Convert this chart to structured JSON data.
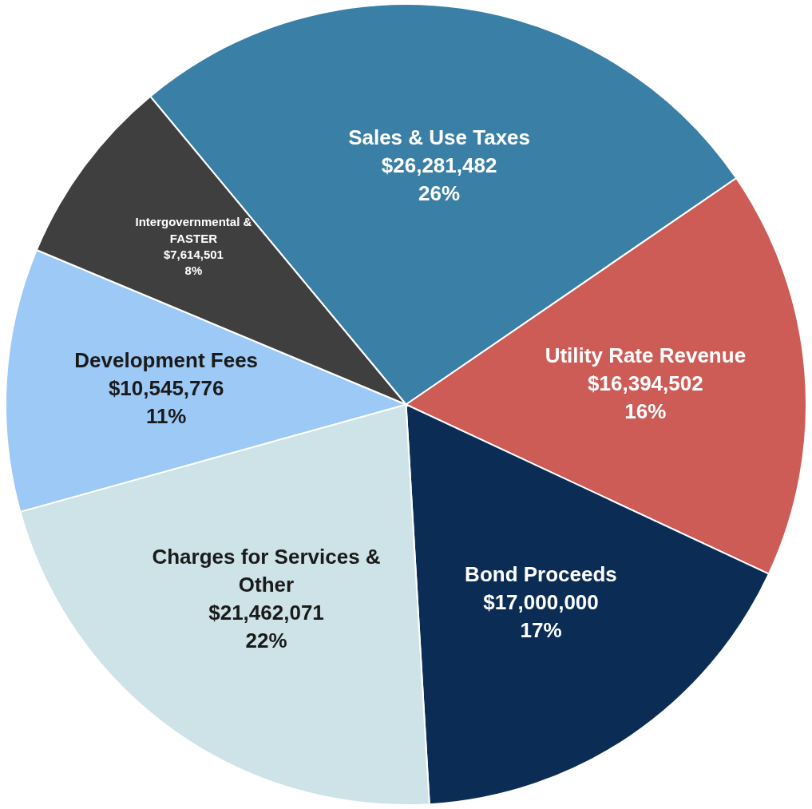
{
  "chart_data": {
    "type": "pie",
    "categories": [
      "Sales & Use Taxes",
      "Utility Rate Revenue",
      "Bond Proceeds",
      "Charges for Services & Other",
      "Development Fees",
      "Intergovernmental & FASTER"
    ],
    "values": [
      26281482,
      16394502,
      17000000,
      21462071,
      10545776,
      7614501
    ],
    "colors": [
      "#3a7fa6",
      "#cd5b56",
      "#0b2d55",
      "#cde3e8",
      "#9cc9f5",
      "#3f3f3f"
    ],
    "value_labels": [
      "$26,281,482\n26%",
      "$16,394,502\n16%",
      "$17,000,000\n17%",
      "$21,462,071\n22%",
      "$10,545,776\n11%",
      "$7,614,501\n8%"
    ],
    "legend": false
  }
}
